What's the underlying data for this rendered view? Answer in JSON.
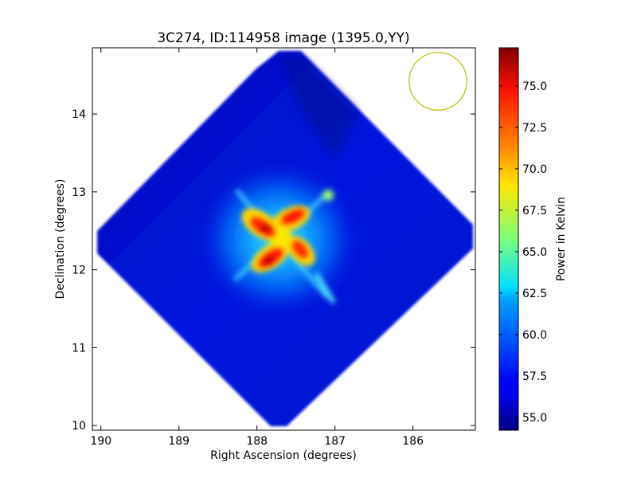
{
  "chart_data": {
    "type": "heatmap",
    "title": "3C274, ID:114958 image (1395.0,YY)",
    "xlabel": "Right Ascension (degrees)",
    "ylabel": "Declination (degrees)",
    "xlim": [
      190.11,
      185.2
    ],
    "ylim": [
      9.94,
      14.85
    ],
    "xticks": [
      190,
      189,
      188,
      187,
      186
    ],
    "yticks": [
      10,
      11,
      12,
      13,
      14
    ],
    "grid": false,
    "colormap": "jet",
    "colorbar": {
      "label": "Power in Kelvin",
      "range": [
        54.23,
        77.3
      ],
      "ticks": [
        "55.0",
        "57.5",
        "60.0",
        "62.5",
        "65.0",
        "67.5",
        "70.0",
        "72.5",
        "75.0"
      ],
      "tick_values": [
        55.0,
        57.5,
        60.0,
        62.5,
        65.0,
        67.5,
        70.0,
        72.5,
        75.0
      ]
    },
    "beam": {
      "ra": 185.68,
      "dec": 14.42,
      "radius_deg": 0.37,
      "color": "#bbbb00"
    },
    "background_level": 56.5,
    "peak_level": 77.0
  }
}
